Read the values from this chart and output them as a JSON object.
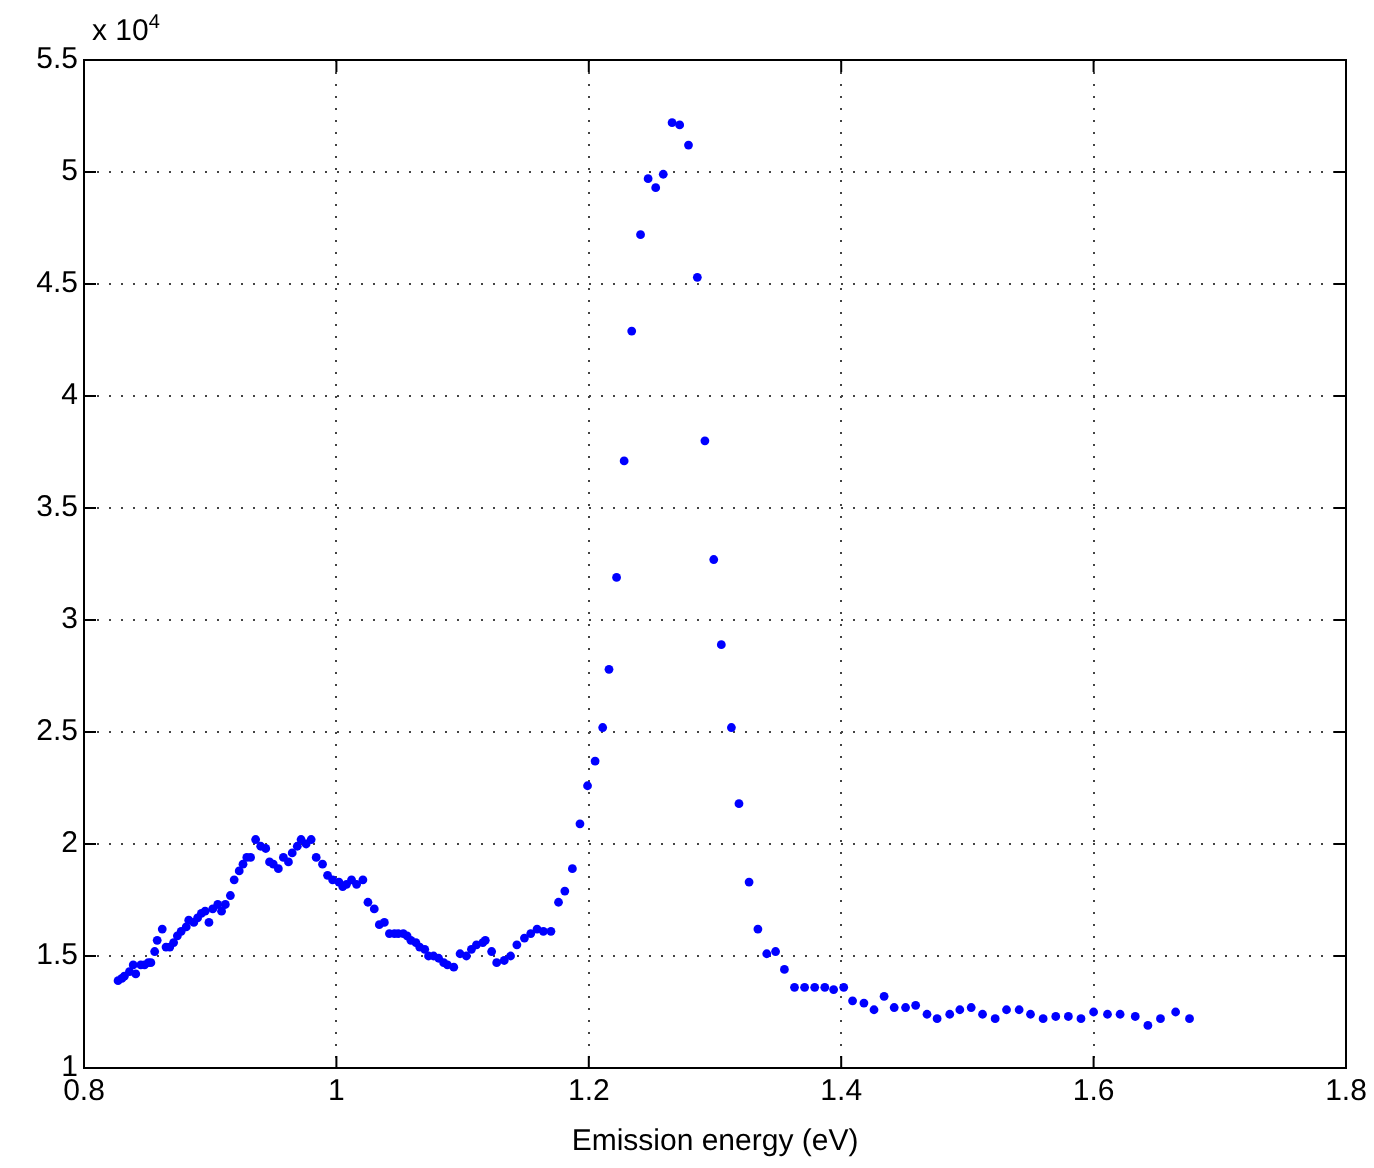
{
  "chart_data": {
    "type": "scatter",
    "xlabel": "Emission energy (eV)",
    "annotations": [
      "x 10$^{4}$"
    ],
    "xlim": [
      0.8,
      1.8
    ],
    "xticks": [
      0.8,
      1,
      1.2,
      1.4,
      1.6,
      1.8
    ],
    "ylim": [
      1,
      5.5
    ],
    "yticks": [
      1,
      1.5,
      2,
      2.5,
      3,
      3.5,
      4,
      4.5,
      5,
      5.5
    ],
    "grid": true,
    "legend": false,
    "marker": "circle",
    "series": [
      {
        "color": "#0000ff",
        "x": [
          0.827,
          0.83,
          0.832,
          0.836,
          0.839,
          0.841,
          0.845,
          0.848,
          0.851,
          0.853,
          0.856,
          0.858,
          0.862,
          0.865,
          0.868,
          0.871,
          0.874,
          0.877,
          0.881,
          0.883,
          0.887,
          0.89,
          0.893,
          0.896,
          0.899,
          0.902,
          0.906,
          0.909,
          0.912,
          0.916,
          0.919,
          0.923,
          0.926,
          0.929,
          0.932,
          0.936,
          0.94,
          0.944,
          0.947,
          0.95,
          0.954,
          0.958,
          0.962,
          0.965,
          0.969,
          0.972,
          0.976,
          0.98,
          0.984,
          0.989,
          0.993,
          0.997,
          1.002,
          1.005,
          1.008,
          1.012,
          1.016,
          1.021,
          1.025,
          1.03,
          1.034,
          1.038,
          1.042,
          1.046,
          1.049,
          1.053,
          1.056,
          1.059,
          1.063,
          1.066,
          1.07,
          1.073,
          1.077,
          1.081,
          1.085,
          1.088,
          1.093,
          1.098,
          1.103,
          1.107,
          1.111,
          1.116,
          1.118,
          1.123,
          1.127,
          1.133,
          1.138,
          1.143,
          1.149,
          1.154,
          1.159,
          1.164,
          1.17,
          1.176,
          1.181,
          1.187,
          1.193,
          1.199,
          1.205,
          1.211,
          1.216,
          1.222,
          1.228,
          1.234,
          1.241,
          1.247,
          1.253,
          1.259,
          1.266,
          1.272,
          1.279,
          1.286,
          1.292,
          1.299,
          1.305,
          1.313,
          1.319,
          1.327,
          1.334,
          1.341,
          1.348,
          1.355,
          1.363,
          1.371,
          1.379,
          1.387,
          1.394,
          1.402,
          1.409,
          1.418,
          1.426,
          1.434,
          1.442,
          1.451,
          1.459,
          1.468,
          1.476,
          1.486,
          1.494,
          1.503,
          1.512,
          1.522,
          1.531,
          1.541,
          1.55,
          1.56,
          1.57,
          1.58,
          1.59,
          1.6,
          1.611,
          1.621,
          1.633,
          1.643,
          1.653,
          1.665,
          1.676
        ],
        "values": [
          1.39,
          1.4,
          1.41,
          1.43,
          1.46,
          1.42,
          1.46,
          1.46,
          1.47,
          1.47,
          1.52,
          1.57,
          1.62,
          1.54,
          1.54,
          1.56,
          1.59,
          1.61,
          1.63,
          1.66,
          1.65,
          1.67,
          1.69,
          1.7,
          1.65,
          1.71,
          1.73,
          1.7,
          1.73,
          1.77,
          1.84,
          1.88,
          1.91,
          1.94,
          1.94,
          2.02,
          1.99,
          1.98,
          1.92,
          1.91,
          1.89,
          1.94,
          1.92,
          1.96,
          1.99,
          2.02,
          2.0,
          2.02,
          1.94,
          1.91,
          1.86,
          1.84,
          1.83,
          1.81,
          1.82,
          1.84,
          1.82,
          1.84,
          1.74,
          1.71,
          1.64,
          1.65,
          1.6,
          1.6,
          1.6,
          1.6,
          1.59,
          1.57,
          1.56,
          1.54,
          1.53,
          1.5,
          1.5,
          1.49,
          1.47,
          1.46,
          1.45,
          1.51,
          1.5,
          1.53,
          1.55,
          1.56,
          1.57,
          1.52,
          1.47,
          1.48,
          1.5,
          1.55,
          1.58,
          1.6,
          1.62,
          1.61,
          1.61,
          1.74,
          1.79,
          1.89,
          2.09,
          2.26,
          2.37,
          2.52,
          2.78,
          3.19,
          3.71,
          4.29,
          4.72,
          4.97,
          4.93,
          4.99,
          5.22,
          5.21,
          5.12,
          4.53,
          3.8,
          3.27,
          2.89,
          2.52,
          2.18,
          1.83,
          1.62,
          1.51,
          1.52,
          1.44,
          1.36,
          1.36,
          1.36,
          1.36,
          1.35,
          1.36,
          1.3,
          1.29,
          1.26,
          1.32,
          1.27,
          1.27,
          1.28,
          1.24,
          1.22,
          1.24,
          1.26,
          1.27,
          1.24,
          1.22,
          1.26,
          1.26,
          1.24,
          1.22,
          1.23,
          1.23,
          1.22,
          1.25,
          1.24,
          1.24,
          1.23,
          1.19,
          1.22,
          1.25,
          1.22
        ]
      }
    ]
  }
}
